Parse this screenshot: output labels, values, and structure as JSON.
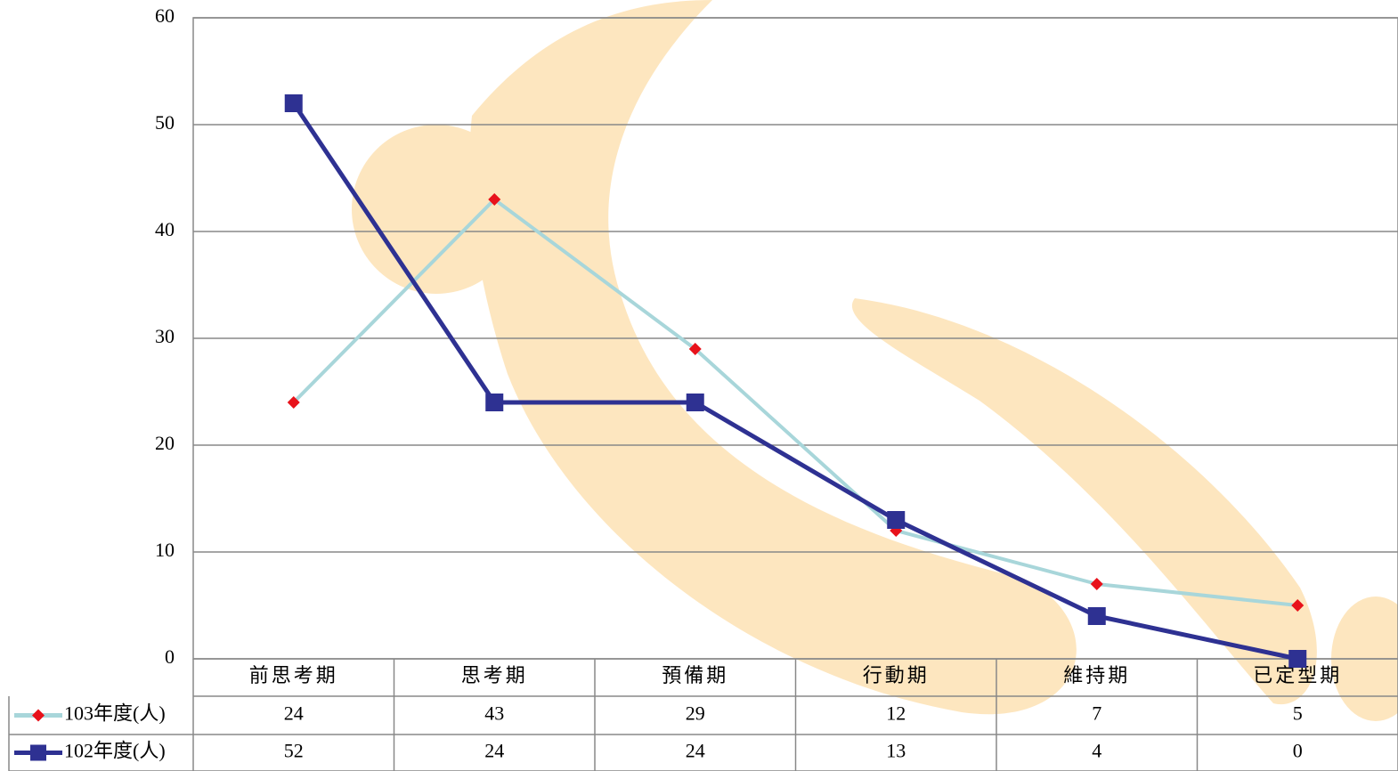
{
  "chart_data": {
    "type": "line",
    "categories": [
      "前思考期",
      "思考期",
      "預備期",
      "行動期",
      "維持期",
      "已定型期"
    ],
    "series": [
      {
        "name": "103年度(人)",
        "color": "#a8d6da",
        "marker": "diamond",
        "marker_color": "#e8121b",
        "values": [
          24,
          43,
          29,
          12,
          7,
          5
        ]
      },
      {
        "name": "102年度(人)",
        "color": "#2e3192",
        "marker": "square",
        "marker_color": "#2e3192",
        "values": [
          52,
          24,
          24,
          13,
          4,
          0
        ]
      }
    ],
    "ylim": [
      0,
      60
    ],
    "yticks": [
      0,
      10,
      20,
      30,
      40,
      50,
      60
    ],
    "grid": true,
    "legend": "table"
  }
}
